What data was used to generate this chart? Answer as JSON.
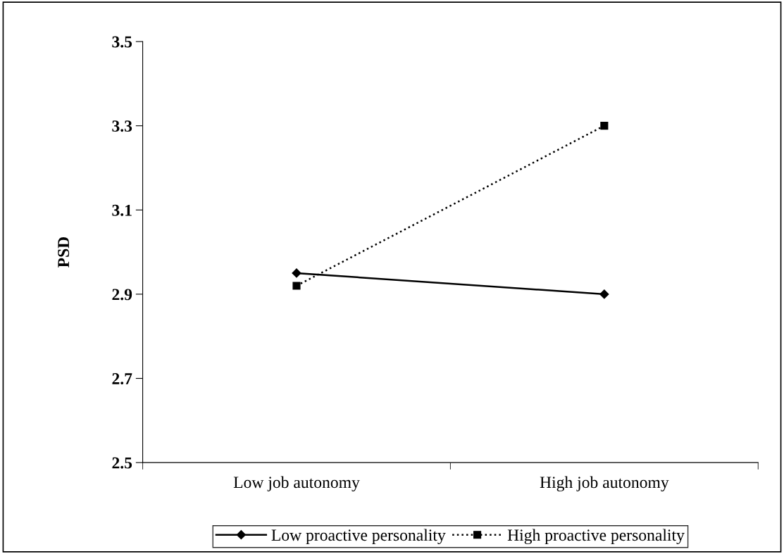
{
  "chart_data": {
    "type": "line",
    "ylabel": "PSD",
    "categories": [
      "Low job autonomy",
      "High job autonomy"
    ],
    "series": [
      {
        "name": "Low proactive personality",
        "color": "#000000",
        "values": [
          2.95,
          2.9
        ],
        "marker": "diamond",
        "line_style": "solid"
      },
      {
        "name": "High proactive personality",
        "color": "#000000",
        "values": [
          2.92,
          3.3
        ],
        "marker": "square",
        "line_style": "dotted"
      }
    ],
    "ylim": [
      2.5,
      3.5
    ],
    "yticks": [
      2.5,
      2.7,
      2.9,
      3.1,
      3.3,
      3.5
    ],
    "grid": false,
    "legend": "bottom"
  }
}
